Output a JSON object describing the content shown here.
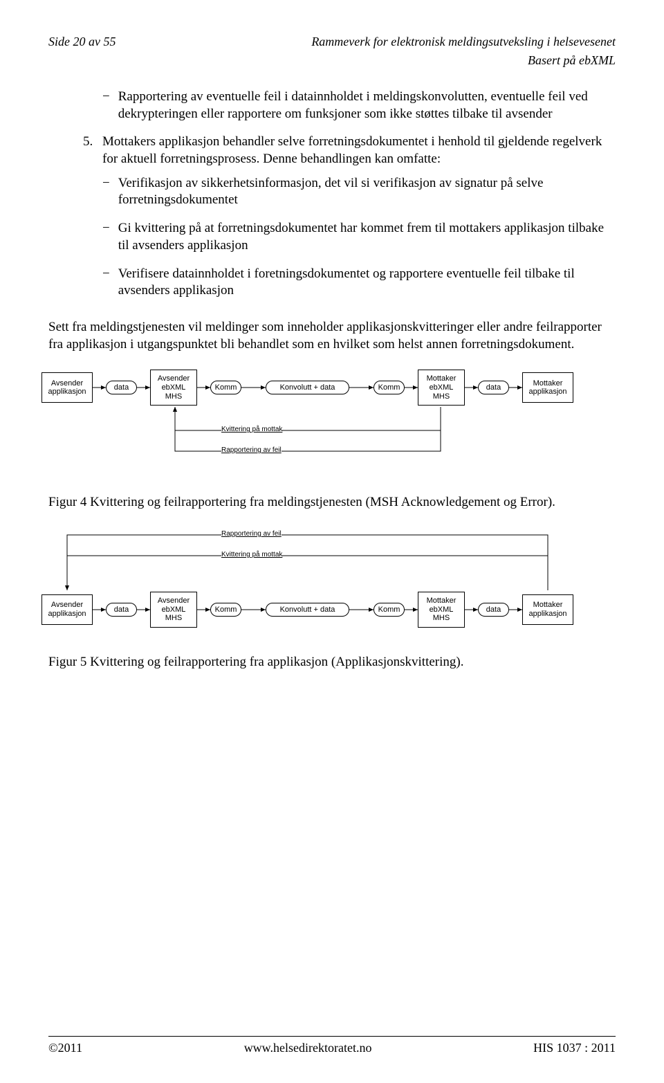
{
  "header": {
    "left": "Side 20 av 55",
    "right_line1": "Rammeverk for elektronisk meldingsutveksling i helsevesenet",
    "right_line2": "Basert på ebXML"
  },
  "bullet4": "Rapportering av eventuelle feil i datainnholdet i meldingskonvolutten, eventuelle feil ved dekrypteringen eller rapportere om funksjoner som ikke støttes tilbake til avsender",
  "item5": {
    "num": "5.",
    "text": "Mottakers applikasjon behandler selve forretningsdokumentet i henhold til gjeldende regelverk for aktuell forretningsprosess. Denne behandlingen kan omfatte:",
    "sub": [
      "Verifikasjon av sikkerhetsinformasjon, det vil si verifikasjon av signatur på selve forretningsdokumentet",
      "Gi kvittering på at forretningsdokumentet har kommet frem til mottakers applikasjon tilbake til avsenders applikasjon",
      "Verifisere datainnholdet i foretningsdokumentet og rapportere eventuelle feil tilbake til avsenders applikasjon"
    ]
  },
  "para": "Sett fra meldingstjenesten vil meldinger som inneholder applikasjonskvitteringer eller andre feilrapporter fra applikasjon i utgangspunktet bli behandlet som en hvilket som helst annen forretningsdokument.",
  "diagram": {
    "nodes": {
      "avsender_app": "Avsender\napplikasjon",
      "data_l": "data",
      "avsender_mhs": "Avsender\nebXML\nMHS",
      "komm_l": "Komm",
      "konv": "Konvolutt + data",
      "komm_r": "Komm",
      "mottaker_mhs": "Mottaker\nebXML\nMHS",
      "data_r": "data",
      "mottaker_app": "Mottaker\napplikasjon"
    },
    "labels": {
      "kvitt": "Kvittering på mottak",
      "rapp": "Rapportering av feil"
    }
  },
  "fig4_caption": "Figur 4 Kvittering og feilrapportering fra meldingstjenesten (MSH Acknowledgement og Error).",
  "fig5_caption": "Figur 5 Kvittering og feilrapportering fra applikasjon (Applikasjonskvittering).",
  "footer": {
    "left": "©2011",
    "center": "www.helsedirektoratet.no",
    "right": "HIS 1037 : 2011"
  }
}
